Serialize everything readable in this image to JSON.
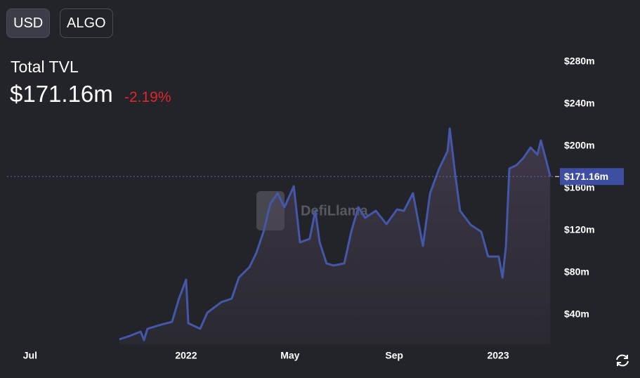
{
  "buttons": [
    "USD",
    "ALGO"
  ],
  "header": {
    "title": "Total TVL",
    "value": "$171.16m",
    "change": "-2.19%"
  },
  "watermark": "DefiLlama",
  "chart_data": {
    "type": "area",
    "x": [
      2021.786,
      2021.82,
      2021.854,
      2021.865,
      2021.876,
      2021.921,
      2021.955,
      2021.977,
      2022.0,
      2022.007,
      2022.045,
      2022.068,
      2022.113,
      2022.146,
      2022.169,
      2022.203,
      2022.225,
      2022.248,
      2022.27,
      2022.293,
      2022.315,
      2022.345,
      2022.365,
      2022.396,
      2022.414,
      2022.428,
      2022.45,
      2022.473,
      2022.507,
      2022.529,
      2022.552,
      2022.574,
      2022.608,
      2022.642,
      2022.676,
      2022.698,
      2022.727,
      2022.759,
      2022.782,
      2022.811,
      2022.838,
      2022.845,
      2022.863,
      2022.878,
      2022.912,
      2022.946,
      2022.968,
      2023.002,
      2023.014,
      2023.025,
      2023.036,
      2023.059,
      2023.081,
      2023.104,
      2023.126,
      2023.137,
      2023.155,
      2023.167
    ],
    "series": [
      {
        "color": "#4457a8",
        "values": [
          16.7,
          20,
          24,
          16,
          26.7,
          30.7,
          33.3,
          55.3,
          73.3,
          32,
          26.7,
          42,
          52,
          55.3,
          75.3,
          85.3,
          98.7,
          118.7,
          145.3,
          155.3,
          142,
          162,
          108.7,
          112,
          138.7,
          108.7,
          88.7,
          86.7,
          88.7,
          118.7,
          142,
          132,
          138.7,
          126,
          140,
          138.7,
          155.3,
          105.3,
          155.3,
          178.7,
          195.3,
          216.7,
          172,
          138.7,
          125.3,
          118.7,
          95.3,
          95.3,
          75.3,
          105.3,
          178.7,
          182,
          188.7,
          198.7,
          192,
          205.3,
          185.3,
          171.16
        ]
      }
    ],
    "xlim": [
      2021.426,
      2023.171
    ],
    "xticks": [
      {
        "value": 2021.5,
        "label": "Jul"
      },
      2022,
      {
        "value": 2022.333,
        "label": "May"
      },
      {
        "value": 2022.667,
        "label": "Sep"
      },
      2023
    ],
    "ylim": [
      12,
      290
    ],
    "yticks": [
      {
        "value": 40,
        "label": "$40m"
      },
      {
        "value": 80,
        "label": "$80m"
      },
      {
        "value": 120,
        "label": "$120m"
      },
      {
        "value": 160,
        "label": "$160m"
      },
      {
        "value": 200,
        "label": "$200m"
      },
      {
        "value": 240,
        "label": "$240m"
      },
      {
        "value": 280,
        "label": "$280m"
      }
    ]
  }
}
